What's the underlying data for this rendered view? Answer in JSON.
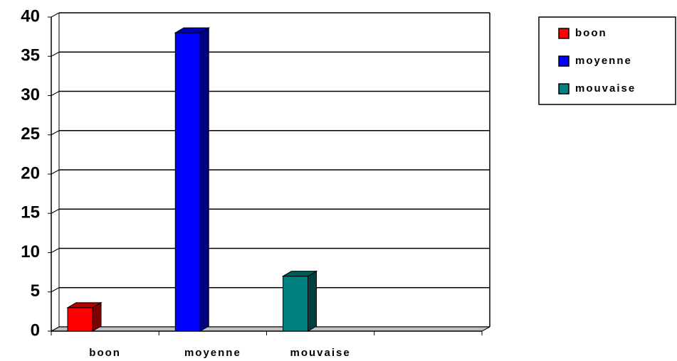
{
  "chart_data": {
    "type": "bar",
    "categories": [
      "boon",
      "moyenne",
      "mouvaise",
      null
    ],
    "values": [
      3,
      38,
      7,
      null
    ],
    "colors": [
      "#ff0000",
      "#0000ff",
      "#008080",
      null
    ],
    "ylim": [
      0,
      40
    ],
    "yticks": [
      0,
      5,
      10,
      15,
      20,
      25,
      30,
      35,
      40
    ],
    "grid": true,
    "legend": "top-right"
  }
}
